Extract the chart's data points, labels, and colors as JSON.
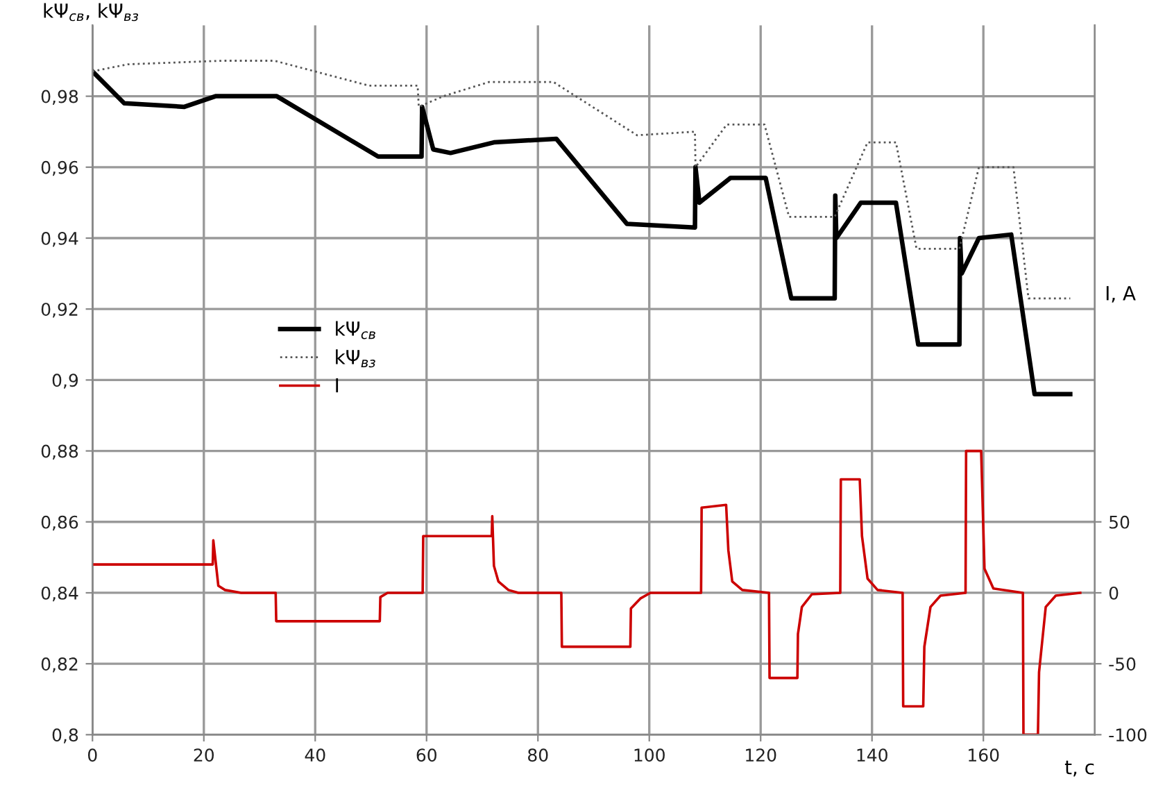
{
  "chart_data": {
    "type": "line",
    "ylabel": "kΨ$_{св}$, kΨ$_{вз}$",
    "y2label": "I, A",
    "xlabel": "t, с",
    "xlim": [
      0,
      180
    ],
    "xticks": [
      0,
      20,
      40,
      60,
      80,
      100,
      120,
      140,
      160
    ],
    "ylim": [
      0.8,
      1.0
    ],
    "yticks": [
      {
        "value": 0.8,
        "label": "0,8"
      },
      {
        "value": 0.82,
        "label": "0,82"
      },
      {
        "value": 0.84,
        "label": "0,84"
      },
      {
        "value": 0.86,
        "label": "0,86"
      },
      {
        "value": 0.88,
        "label": "0,88"
      },
      {
        "value": 0.9,
        "label": "0,9"
      },
      {
        "value": 0.92,
        "label": "0,92"
      },
      {
        "value": 0.94,
        "label": "0,94"
      },
      {
        "value": 0.96,
        "label": "0,96"
      },
      {
        "value": 0.98,
        "label": "0,98"
      }
    ],
    "y2lim": [
      -100,
      400
    ],
    "y2ticks": [
      -100,
      -50,
      0,
      50
    ],
    "grid": true,
    "legend": "center left",
    "series": [
      {
        "name": "kΨ$_{св}$",
        "color": "#000000",
        "line_style": "solid",
        "x": [
          0,
          5.7,
          16.5,
          22.1,
          33.1,
          51.3,
          59.1,
          59.2,
          61.2,
          64.3,
          72.1,
          83.3,
          96,
          108.2,
          108.3,
          109,
          114.6,
          120.9,
          125.5,
          133.3,
          133.4,
          133.6,
          138,
          144.3,
          148.3,
          155.7,
          155.8,
          156.1,
          159.2,
          165,
          169.2,
          175.6
        ],
        "values": [
          0.987,
          0.978,
          0.977,
          0.98,
          0.98,
          0.963,
          0.963,
          0.977,
          0.965,
          0.964,
          0.967,
          0.968,
          0.944,
          0.943,
          0.96,
          0.95,
          0.957,
          0.957,
          0.923,
          0.923,
          0.952,
          0.94,
          0.95,
          0.95,
          0.91,
          0.91,
          0.94,
          0.93,
          0.94,
          0.941,
          0.896,
          0.896
        ]
      },
      {
        "name": "kΨ$_{вз}$",
        "color": "#555555",
        "line_style": "dotted",
        "x": [
          0,
          6.3,
          23.2,
          32.7,
          49.6,
          58.4,
          58.6,
          63,
          71.2,
          82.8,
          97.8,
          108.2,
          108.3,
          113.9,
          120.7,
          125.1,
          133.3,
          139.2,
          144.3,
          148,
          155.7,
          159.2,
          165.4,
          168.1,
          175.6
        ],
        "values": [
          0.987,
          0.989,
          0.99,
          0.99,
          0.983,
          0.983,
          0.977,
          0.98,
          0.984,
          0.984,
          0.969,
          0.97,
          0.96,
          0.972,
          0.972,
          0.946,
          0.946,
          0.967,
          0.967,
          0.937,
          0.937,
          0.96,
          0.96,
          0.923,
          0.923
        ]
      },
      {
        "name": "I",
        "color": "#cc0000",
        "line_style": "solid",
        "axis": "y2",
        "x": [
          0,
          21.6,
          21.7,
          22.6,
          23.8,
          26.7,
          32.9,
          33.0,
          51.6,
          51.7,
          53,
          59.3,
          59.4,
          71.7,
          71.8,
          72.1,
          72.9,
          74.7,
          76.5,
          84.2,
          84.3,
          96.6,
          96.7,
          98.4,
          100.2,
          109.3,
          109.4,
          113.8,
          114.2,
          114.9,
          116.7,
          121.5,
          121.6,
          126.6,
          126.7,
          127.4,
          129.2,
          134.3,
          134.4,
          137.8,
          138.2,
          139.2,
          141,
          145.5,
          145.6,
          149.2,
          149.4,
          150.5,
          152.3,
          156.8,
          156.9,
          159.6,
          160.2,
          161.8,
          167.1,
          167.2,
          169.8,
          170,
          171.2,
          173,
          177.4
        ],
        "values": [
          20,
          20,
          37,
          5,
          2,
          0,
          0,
          -20,
          -20,
          -3,
          0,
          0,
          40,
          40,
          54,
          19,
          8,
          2,
          0,
          0,
          -38,
          -38,
          -11,
          -4,
          0,
          0,
          60,
          62,
          30,
          8,
          2,
          0,
          -60,
          -60,
          -29,
          -10,
          -1,
          0,
          80,
          80,
          40,
          10,
          2,
          0,
          -80,
          -80,
          -38,
          -10,
          -2,
          0,
          100,
          100,
          17,
          3,
          0,
          -100,
          -100,
          -56,
          -10,
          -2,
          0
        ]
      }
    ]
  }
}
